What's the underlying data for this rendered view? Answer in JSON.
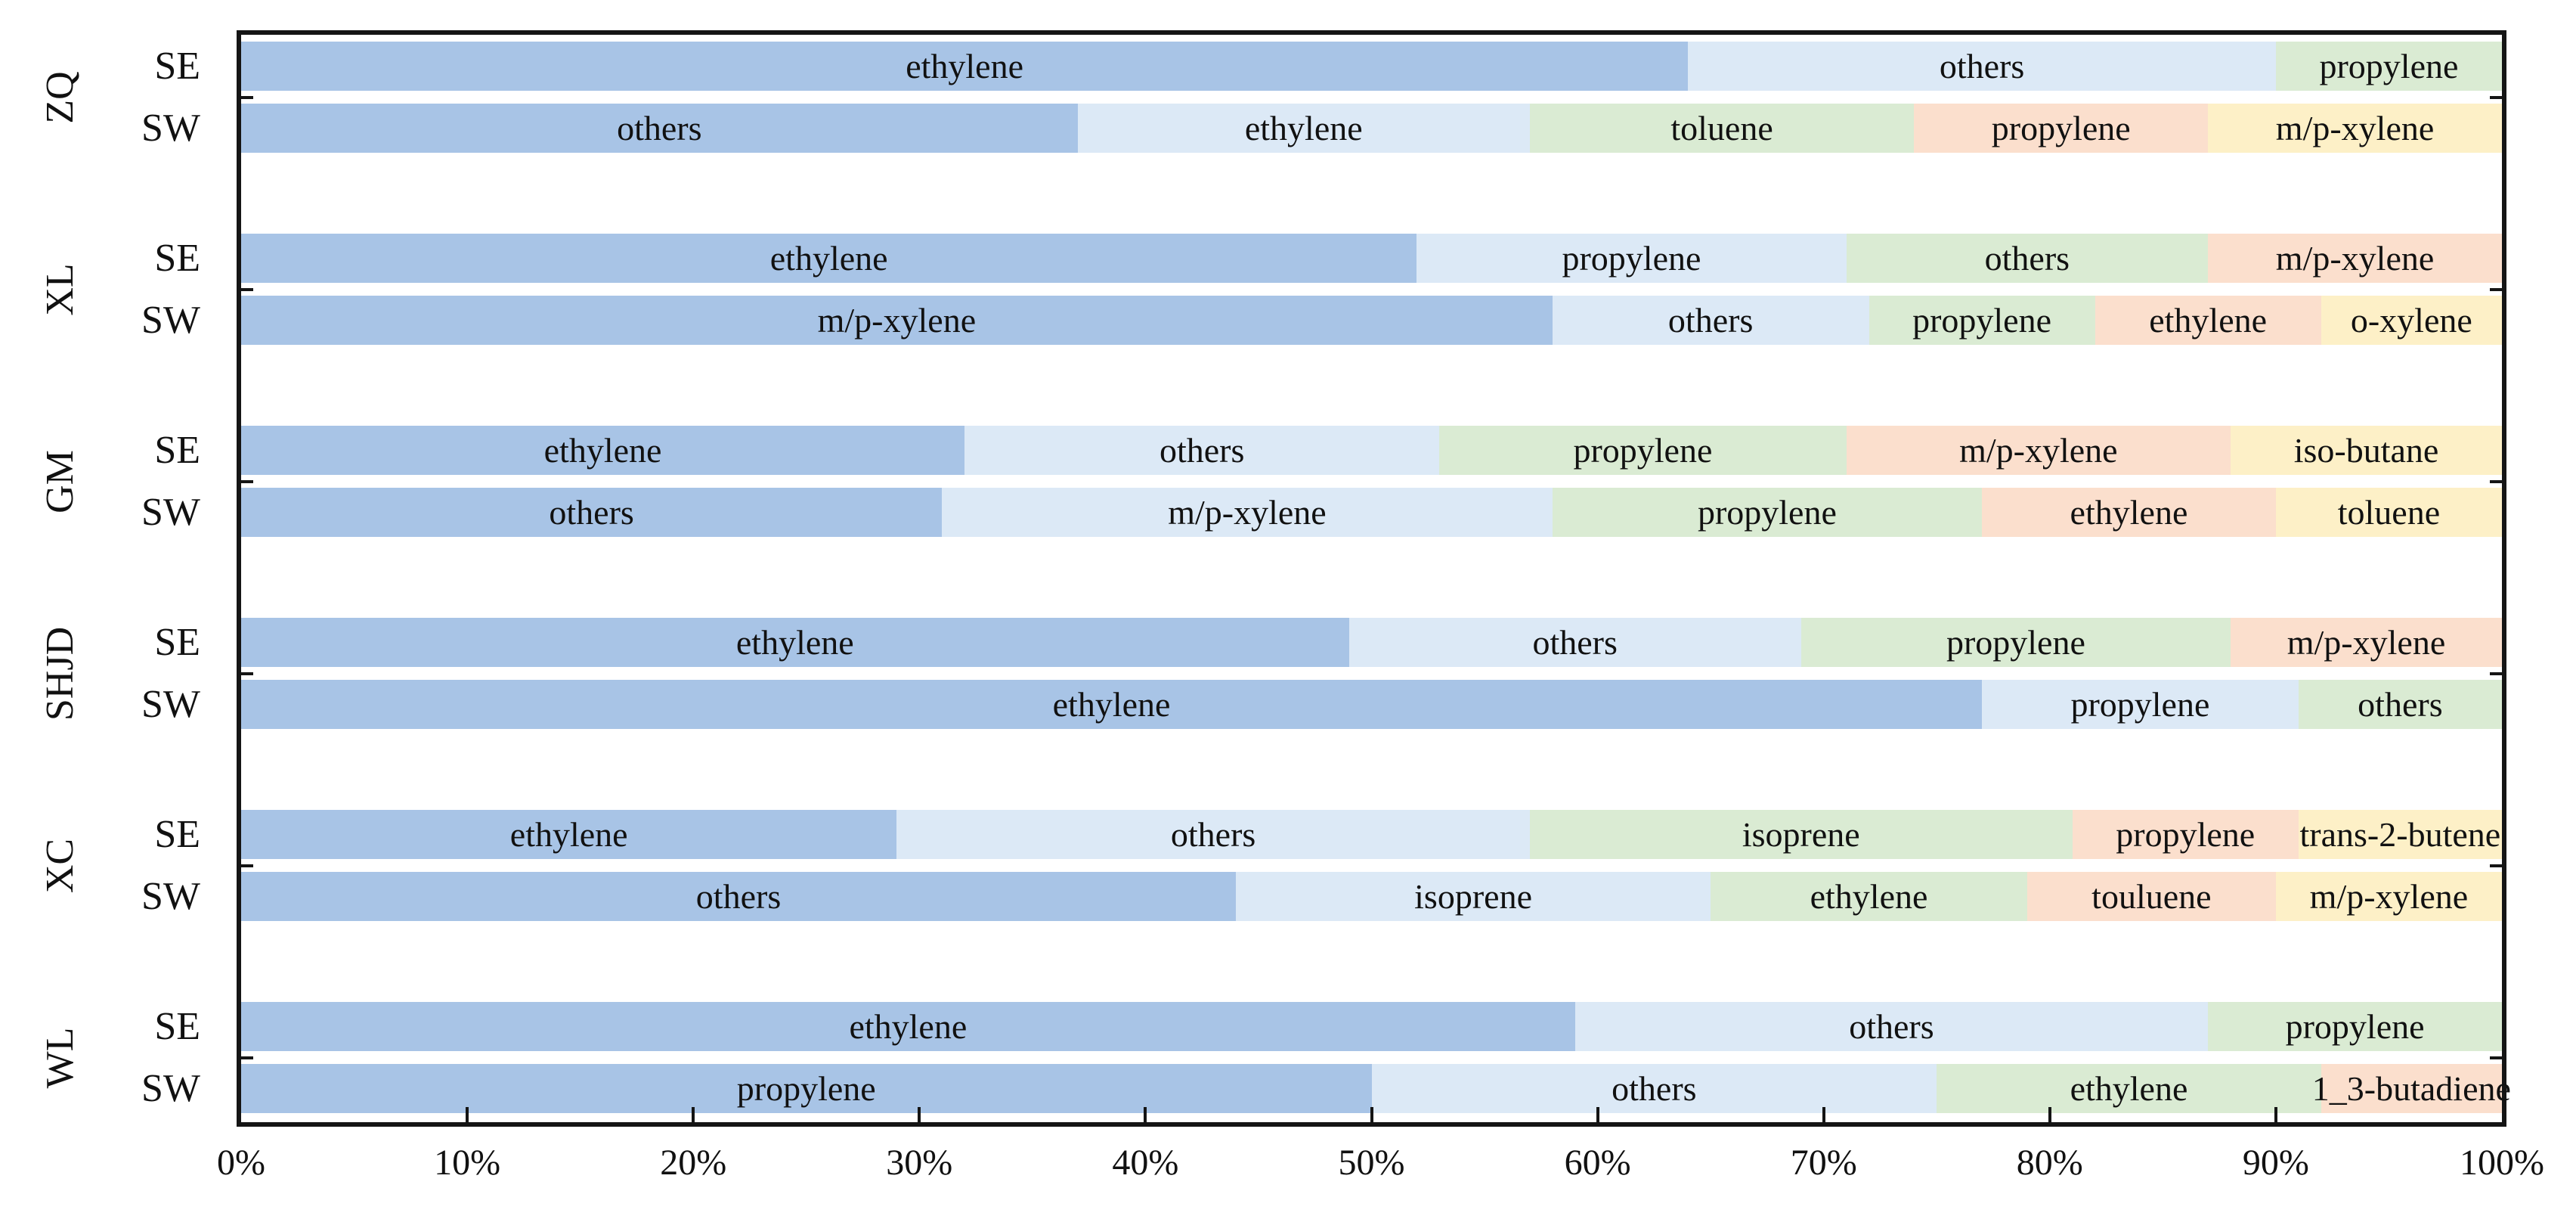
{
  "chart_data": {
    "type": "bar",
    "variant": "horizontal-stacked-percentage",
    "title": "",
    "xlabel": "",
    "ylabel": "",
    "xlim": [
      0,
      100
    ],
    "x_tick_labels": [
      "0%",
      "10%",
      "20%",
      "30%",
      "40%",
      "50%",
      "60%",
      "70%",
      "80%",
      "90%",
      "100%"
    ],
    "grid": false,
    "legend_position": "none",
    "bar_direction_labels": [
      "SE",
      "SW"
    ],
    "segment_colors": [
      "#a8c4e6",
      "#dce9f6",
      "#daebd3",
      "#fbdfcd",
      "#fdf0c7"
    ],
    "axis_color": "#151515",
    "text_color": "#111111",
    "background_color": "#ffffff",
    "groups": [
      {
        "label": "ZQ",
        "bars": [
          {
            "label": "SE",
            "segments": [
              {
                "name": "ethylene",
                "value": 64
              },
              {
                "name": "others",
                "value": 26
              },
              {
                "name": "propylene",
                "value": 10
              }
            ]
          },
          {
            "label": "SW",
            "segments": [
              {
                "name": "others",
                "value": 37
              },
              {
                "name": "ethylene",
                "value": 20
              },
              {
                "name": "toluene",
                "value": 17
              },
              {
                "name": "propylene",
                "value": 13
              },
              {
                "name": "m/p-xylene",
                "value": 13
              }
            ]
          }
        ]
      },
      {
        "label": "XL",
        "bars": [
          {
            "label": "SE",
            "segments": [
              {
                "name": "ethylene",
                "value": 52
              },
              {
                "name": "propylene",
                "value": 19
              },
              {
                "name": "others",
                "value": 16
              },
              {
                "name": "m/p-xylene",
                "value": 13
              }
            ]
          },
          {
            "label": "SW",
            "segments": [
              {
                "name": "m/p-xylene",
                "value": 58
              },
              {
                "name": "others",
                "value": 14
              },
              {
                "name": "propylene",
                "value": 10
              },
              {
                "name": "ethylene",
                "value": 10
              },
              {
                "name": "o-xylene",
                "value": 8
              }
            ]
          }
        ]
      },
      {
        "label": "GM",
        "bars": [
          {
            "label": "SE",
            "segments": [
              {
                "name": "ethylene",
                "value": 32
              },
              {
                "name": "others",
                "value": 21
              },
              {
                "name": "propylene",
                "value": 18
              },
              {
                "name": "m/p-xylene",
                "value": 17
              },
              {
                "name": "iso-butane",
                "value": 12
              }
            ]
          },
          {
            "label": "SW",
            "segments": [
              {
                "name": "others",
                "value": 31
              },
              {
                "name": "m/p-xylene",
                "value": 27
              },
              {
                "name": "propylene",
                "value": 19
              },
              {
                "name": "ethylene",
                "value": 13
              },
              {
                "name": "toluene",
                "value": 10
              }
            ]
          }
        ]
      },
      {
        "label": "SHJD",
        "bars": [
          {
            "label": "SE",
            "segments": [
              {
                "name": "ethylene",
                "value": 49
              },
              {
                "name": "others",
                "value": 20
              },
              {
                "name": "propylene",
                "value": 19
              },
              {
                "name": "m/p-xylene",
                "value": 12
              }
            ]
          },
          {
            "label": "SW",
            "segments": [
              {
                "name": "ethylene",
                "value": 77
              },
              {
                "name": "propylene",
                "value": 14
              },
              {
                "name": "others",
                "value": 9
              }
            ]
          }
        ]
      },
      {
        "label": "XC",
        "bars": [
          {
            "label": "SE",
            "segments": [
              {
                "name": "ethylene",
                "value": 29
              },
              {
                "name": "others",
                "value": 28
              },
              {
                "name": "isoprene",
                "value": 24
              },
              {
                "name": "propylene",
                "value": 10
              },
              {
                "name": "trans-2-butene",
                "value": 9
              }
            ]
          },
          {
            "label": "SW",
            "segments": [
              {
                "name": "others",
                "value": 44
              },
              {
                "name": "isoprene",
                "value": 21
              },
              {
                "name": "ethylene",
                "value": 14
              },
              {
                "name": "touluene",
                "value": 11
              },
              {
                "name": "m/p-xylene",
                "value": 10
              }
            ]
          }
        ]
      },
      {
        "label": "WL",
        "bars": [
          {
            "label": "SE",
            "segments": [
              {
                "name": "ethylene",
                "value": 59
              },
              {
                "name": "others",
                "value": 28
              },
              {
                "name": "propylene",
                "value": 13
              }
            ]
          },
          {
            "label": "SW",
            "segments": [
              {
                "name": "propylene",
                "value": 50
              },
              {
                "name": "others",
                "value": 25
              },
              {
                "name": "ethylene",
                "value": 17
              },
              {
                "name": "1_3-butadiene",
                "value": 8
              }
            ]
          }
        ]
      }
    ]
  }
}
